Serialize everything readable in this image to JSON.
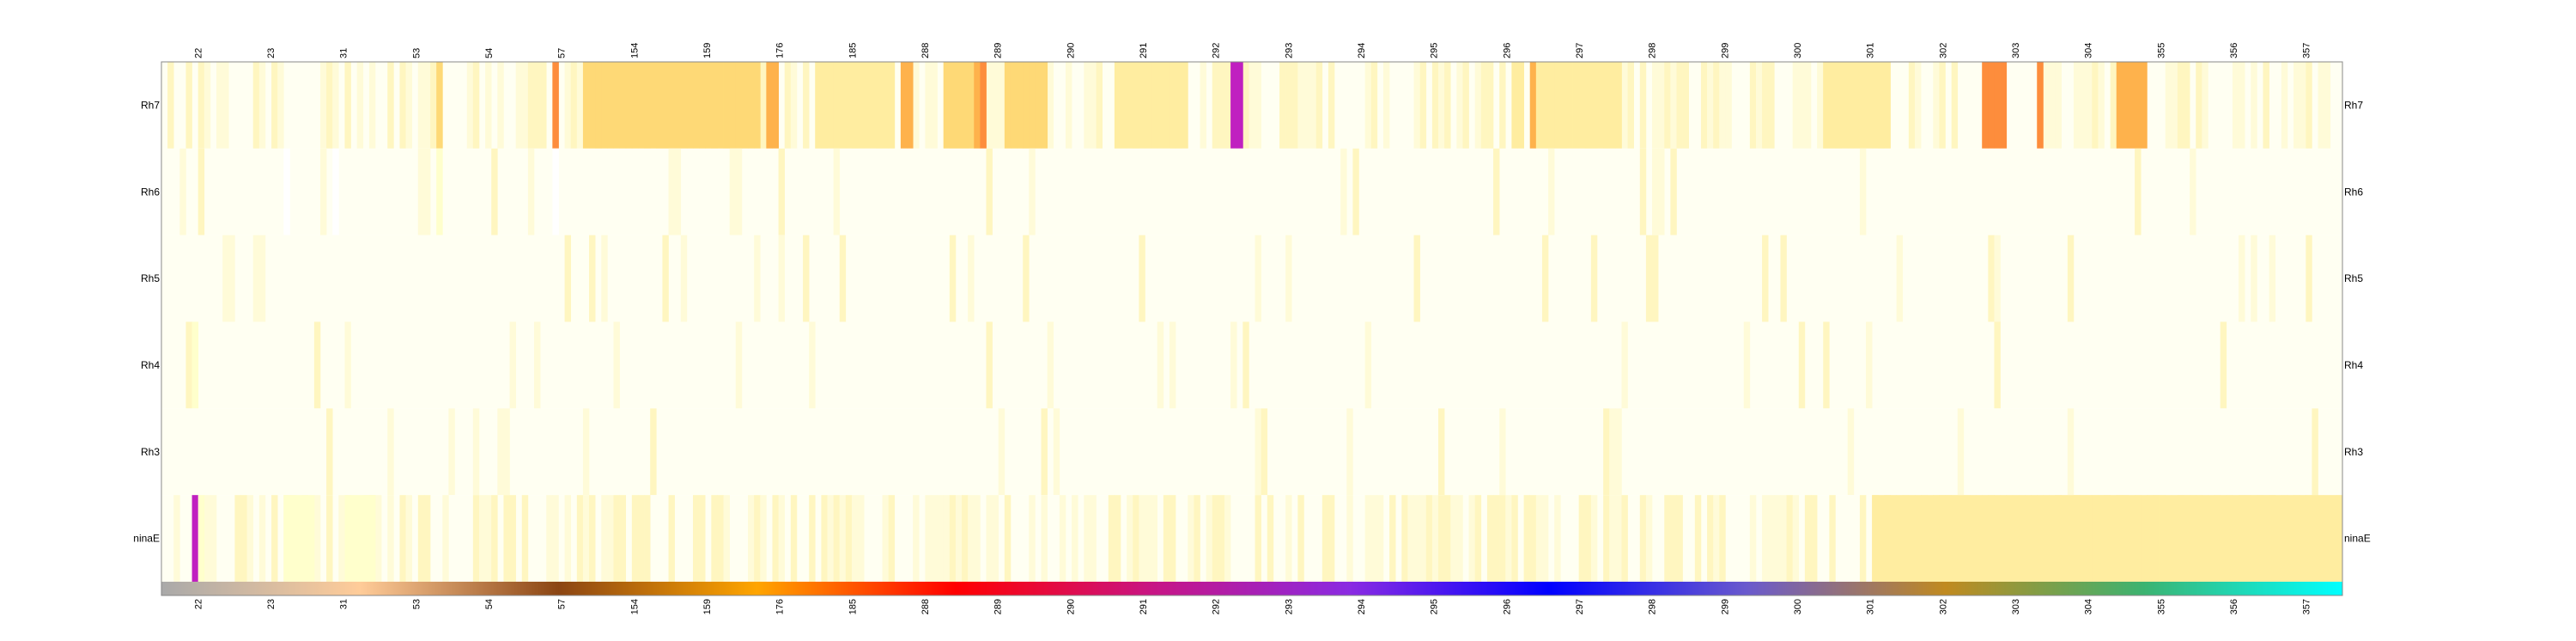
{
  "chart_data": {
    "type": "heatmap",
    "title": "",
    "rows": [
      "Rh7",
      "Rh6",
      "Rh5",
      "Rh4",
      "Rh3",
      "ninaE"
    ],
    "row_labels_both_sides": true,
    "columns": {
      "count": 357,
      "labels_shown": [
        "22",
        "23",
        "31",
        "53",
        "54",
        "57",
        "154",
        "159",
        "176",
        "185",
        "288",
        "289",
        "290",
        "291",
        "292",
        "293",
        "294",
        "295",
        "296",
        "297",
        "298",
        "299",
        "300",
        "301",
        "302",
        "303",
        "304",
        "355",
        "356",
        "357"
      ]
    },
    "value_scale": {
      "colors": [
        "#ffffff",
        "#ffffcc",
        "#ffeda0",
        "#fed976",
        "#feb24c",
        "#fd8d3c",
        "#f7a13a"
      ],
      "note": "cell values 0-1; 1 drawn as magenta"
    },
    "highlight_color": "#c020c0",
    "column_groups": {
      "colors": [
        "#a9a9a9",
        "#ffcc99",
        "#8b4513",
        "#ffa500",
        "#ff0000",
        "#c71585",
        "#8a2be2",
        "#0000ff",
        "#6a5acd",
        "#c08a20",
        "#3cb371",
        "#00ffff"
      ]
    },
    "series": [
      {
        "name": "Rh7",
        "hotspots": [
          [
            45,
            0.55
          ],
          [
            64,
            0.75
          ],
          [
            69,
            0.45
          ],
          [
            70,
            0.45
          ],
          [
            71,
            0.45
          ],
          [
            72,
            0.45
          ],
          [
            73,
            0.45
          ],
          [
            74,
            0.45
          ],
          [
            75,
            0.45
          ],
          [
            76,
            0.45
          ],
          [
            77,
            0.45
          ],
          [
            78,
            0.45
          ],
          [
            79,
            0.45
          ],
          [
            80,
            0.45
          ],
          [
            81,
            0.45
          ],
          [
            82,
            0.45
          ],
          [
            83,
            0.45
          ],
          [
            84,
            0.45
          ],
          [
            85,
            0.45
          ],
          [
            86,
            0.45
          ],
          [
            87,
            0.45
          ],
          [
            88,
            0.45
          ],
          [
            89,
            0.45
          ],
          [
            90,
            0.45
          ],
          [
            91,
            0.45
          ],
          [
            92,
            0.45
          ],
          [
            93,
            0.45
          ],
          [
            94,
            0.45
          ],
          [
            95,
            0.45
          ],
          [
            96,
            0.45
          ],
          [
            97,
            0.45
          ],
          [
            99,
            0.65
          ],
          [
            100,
            0.65
          ],
          [
            107,
            0.4
          ],
          [
            108,
            0.4
          ],
          [
            109,
            0.4
          ],
          [
            110,
            0.4
          ],
          [
            111,
            0.4
          ],
          [
            112,
            0.4
          ],
          [
            113,
            0.4
          ],
          [
            114,
            0.4
          ],
          [
            115,
            0.4
          ],
          [
            116,
            0.4
          ],
          [
            117,
            0.4
          ],
          [
            118,
            0.4
          ],
          [
            119,
            0.4
          ],
          [
            121,
            0.7
          ],
          [
            122,
            0.7
          ],
          [
            128,
            0.55
          ],
          [
            129,
            0.55
          ],
          [
            130,
            0.55
          ],
          [
            131,
            0.55
          ],
          [
            132,
            0.55
          ],
          [
            133,
            0.7
          ],
          [
            134,
            0.85
          ],
          [
            138,
            0.55
          ],
          [
            139,
            0.55
          ],
          [
            140,
            0.55
          ],
          [
            141,
            0.55
          ],
          [
            142,
            0.55
          ],
          [
            143,
            0.55
          ],
          [
            144,
            0.55
          ],
          [
            156,
            0.35
          ],
          [
            157,
            0.35
          ],
          [
            158,
            0.35
          ],
          [
            159,
            0.35
          ],
          [
            160,
            0.35
          ],
          [
            161,
            0.35
          ],
          [
            162,
            0.35
          ],
          [
            163,
            0.35
          ],
          [
            164,
            0.35
          ],
          [
            165,
            0.35
          ],
          [
            166,
            0.35
          ],
          [
            167,
            0.35
          ],
          [
            175,
            1.0
          ],
          [
            176,
            1.0
          ],
          [
            221,
            0.4
          ],
          [
            222,
            0.4
          ],
          [
            224,
            0.6
          ],
          [
            225,
            0.4
          ],
          [
            226,
            0.4
          ],
          [
            227,
            0.4
          ],
          [
            228,
            0.4
          ],
          [
            229,
            0.4
          ],
          [
            230,
            0.4
          ],
          [
            231,
            0.4
          ],
          [
            232,
            0.4
          ],
          [
            233,
            0.4
          ],
          [
            234,
            0.4
          ],
          [
            235,
            0.4
          ],
          [
            236,
            0.4
          ],
          [
            237,
            0.4
          ],
          [
            238,
            0.4
          ],
          [
            272,
            0.35
          ],
          [
            273,
            0.35
          ],
          [
            274,
            0.35
          ],
          [
            275,
            0.35
          ],
          [
            276,
            0.35
          ],
          [
            277,
            0.35
          ],
          [
            278,
            0.35
          ],
          [
            279,
            0.35
          ],
          [
            280,
            0.35
          ],
          [
            281,
            0.35
          ],
          [
            282,
            0.35
          ],
          [
            298,
            0.85
          ],
          [
            299,
            0.85
          ],
          [
            300,
            0.85
          ],
          [
            301,
            0.85
          ],
          [
            307,
            0.85
          ],
          [
            320,
            0.7
          ],
          [
            321,
            0.7
          ],
          [
            322,
            0.7
          ],
          [
            323,
            0.7
          ],
          [
            324,
            0.7
          ]
        ]
      },
      {
        "name": "Rh6",
        "hotspots": [
          [
            20,
            0.08
          ],
          [
            28,
            0.08
          ],
          [
            45,
            0.12
          ],
          [
            64,
            0.08
          ]
        ]
      },
      {
        "name": "Rh5",
        "hotspots": []
      },
      {
        "name": "Rh4",
        "hotspots": [
          [
            5,
            0.15
          ]
        ]
      },
      {
        "name": "Rh3",
        "hotspots": []
      },
      {
        "name": "ninaE",
        "hotspots": [
          [
            5,
            1.0
          ],
          [
            6,
            0.2
          ],
          [
            20,
            0.2
          ],
          [
            21,
            0.2
          ],
          [
            22,
            0.2
          ],
          [
            23,
            0.2
          ],
          [
            24,
            0.2
          ],
          [
            30,
            0.2
          ],
          [
            31,
            0.2
          ],
          [
            32,
            0.2
          ],
          [
            33,
            0.2
          ],
          [
            34,
            0.2
          ],
          [
            280,
            0.25
          ],
          [
            281,
            0.25
          ],
          [
            282,
            0.25
          ],
          [
            283,
            0.25
          ],
          [
            284,
            0.25
          ],
          [
            285,
            0.25
          ],
          [
            286,
            0.25
          ],
          [
            287,
            0.25
          ],
          [
            288,
            0.25
          ],
          [
            289,
            0.25
          ],
          [
            290,
            0.25
          ],
          [
            291,
            0.25
          ],
          [
            292,
            0.25
          ],
          [
            293,
            0.25
          ],
          [
            294,
            0.25
          ],
          [
            295,
            0.25
          ],
          [
            296,
            0.25
          ],
          [
            297,
            0.25
          ],
          [
            298,
            0.25
          ],
          [
            299,
            0.25
          ],
          [
            300,
            0.25
          ],
          [
            301,
            0.25
          ],
          [
            302,
            0.25
          ],
          [
            303,
            0.25
          ],
          [
            304,
            0.25
          ],
          [
            305,
            0.25
          ],
          [
            306,
            0.25
          ],
          [
            307,
            0.25
          ],
          [
            308,
            0.25
          ],
          [
            309,
            0.25
          ],
          [
            310,
            0.25
          ],
          [
            311,
            0.25
          ],
          [
            312,
            0.25
          ],
          [
            313,
            0.25
          ],
          [
            314,
            0.25
          ],
          [
            315,
            0.25
          ],
          [
            316,
            0.25
          ],
          [
            317,
            0.25
          ],
          [
            318,
            0.25
          ],
          [
            319,
            0.25
          ],
          [
            320,
            0.25
          ],
          [
            321,
            0.25
          ],
          [
            322,
            0.25
          ],
          [
            323,
            0.25
          ],
          [
            324,
            0.25
          ],
          [
            325,
            0.25
          ],
          [
            326,
            0.25
          ],
          [
            327,
            0.25
          ],
          [
            328,
            0.25
          ],
          [
            329,
            0.25
          ],
          [
            330,
            0.25
          ],
          [
            331,
            0.25
          ],
          [
            332,
            0.25
          ],
          [
            333,
            0.25
          ],
          [
            334,
            0.25
          ],
          [
            335,
            0.25
          ],
          [
            336,
            0.25
          ],
          [
            337,
            0.25
          ],
          [
            338,
            0.25
          ],
          [
            339,
            0.25
          ],
          [
            340,
            0.25
          ],
          [
            341,
            0.25
          ],
          [
            342,
            0.25
          ],
          [
            343,
            0.25
          ],
          [
            344,
            0.25
          ],
          [
            345,
            0.25
          ],
          [
            346,
            0.25
          ],
          [
            347,
            0.25
          ],
          [
            348,
            0.25
          ],
          [
            349,
            0.25
          ],
          [
            350,
            0.25
          ],
          [
            351,
            0.25
          ],
          [
            352,
            0.25
          ],
          [
            353,
            0.25
          ],
          [
            354,
            0.25
          ],
          [
            355,
            0.25
          ],
          [
            356,
            0.25
          ]
        ]
      }
    ]
  }
}
